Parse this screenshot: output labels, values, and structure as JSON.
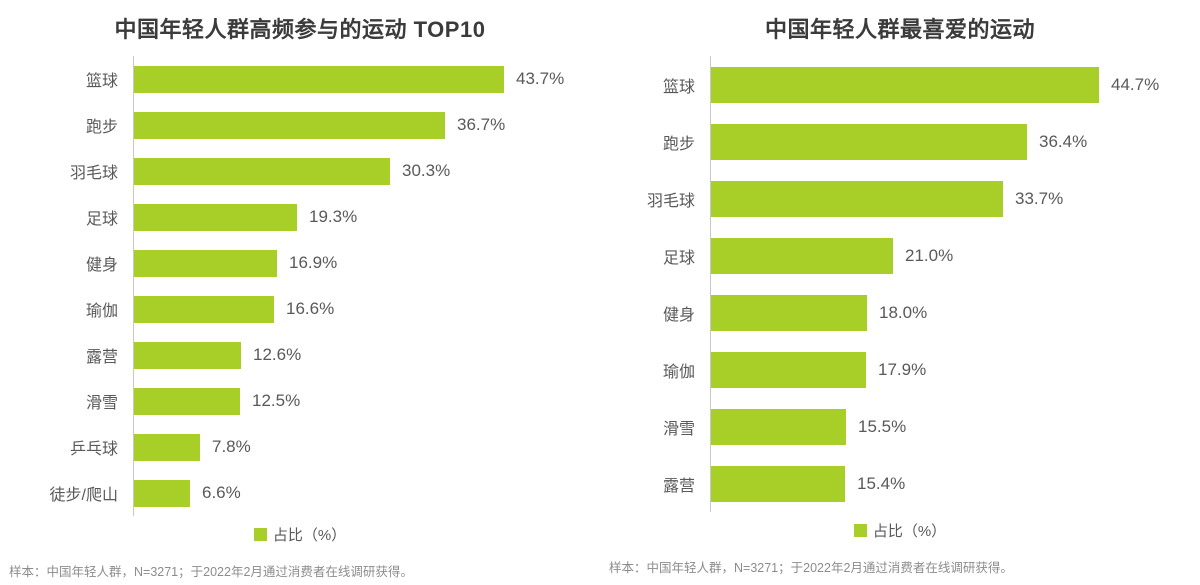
{
  "chart_data": [
    {
      "type": "bar",
      "orientation": "horizontal",
      "title": "中国年轻人群高频参与的运动 TOP10",
      "categories": [
        "篮球",
        "跑步",
        "羽毛球",
        "足球",
        "健身",
        "瑜伽",
        "露营",
        "滑雪",
        "乒乓球",
        "徒步/爬山"
      ],
      "values": [
        43.7,
        36.7,
        30.3,
        19.3,
        16.9,
        16.6,
        12.6,
        12.5,
        7.8,
        6.6
      ],
      "value_labels": [
        "43.7%",
        "36.7%",
        "30.3%",
        "19.3%",
        "16.9%",
        "16.6%",
        "12.6%",
        "12.5%",
        "7.8%",
        "6.6%"
      ],
      "unit": "%",
      "xlim": [
        0,
        52
      ],
      "grid": false,
      "legend": "占比（%）",
      "legend_position": "bottom",
      "bar_color": "#a8cf28",
      "footnote": "样本：中国年轻人群，N=3271；于2022年2月通过消费者在线调研获得。"
    },
    {
      "type": "bar",
      "orientation": "horizontal",
      "title": "中国年轻人群最喜爱的运动",
      "categories": [
        "篮球",
        "跑步",
        "羽毛球",
        "足球",
        "健身",
        "瑜伽",
        "滑雪",
        "露营"
      ],
      "values": [
        44.7,
        36.4,
        33.7,
        21.0,
        18.0,
        17.9,
        15.5,
        15.4
      ],
      "value_labels": [
        "44.7%",
        "36.4%",
        "33.7%",
        "21.0%",
        "18.0%",
        "17.9%",
        "15.5%",
        "15.4%"
      ],
      "unit": "%",
      "xlim": [
        0,
        53
      ],
      "grid": false,
      "legend": "占比（%）",
      "legend_position": "bottom",
      "bar_color": "#a8cf28",
      "footnote": "样本：中国年轻人群，N=3271；于2022年2月通过消费者在线调研获得。"
    }
  ],
  "colors": {
    "bar": "#a8cf28",
    "title_text": "#3b3b3b",
    "label_text": "#595959",
    "axis_line": "#c8c8c8",
    "footnote_text": "#8c8c8c",
    "background": "#ffffff"
  }
}
